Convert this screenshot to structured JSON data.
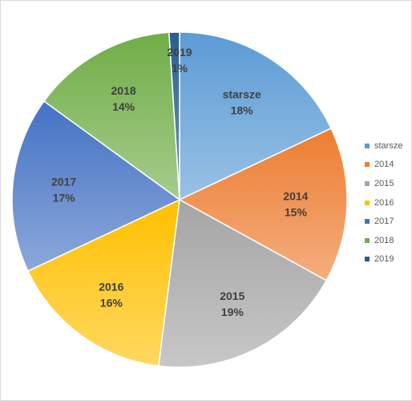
{
  "chart_data": {
    "type": "pie",
    "categories": [
      "starsze",
      "2014",
      "2015",
      "2016",
      "2017",
      "2018",
      "2019"
    ],
    "values": [
      18,
      15,
      19,
      16,
      17,
      14,
      1
    ],
    "labels": [
      "18%",
      "15%",
      "19%",
      "16%",
      "17%",
      "14%",
      "1%"
    ],
    "colors": [
      "#5b9bd5",
      "#ed7d31",
      "#a5a5a5",
      "#ffc000",
      "#4472c4",
      "#70ad47",
      "#255e91"
    ],
    "legend_position": "right",
    "start_angle": "12 o'clock",
    "direction": "clockwise"
  }
}
